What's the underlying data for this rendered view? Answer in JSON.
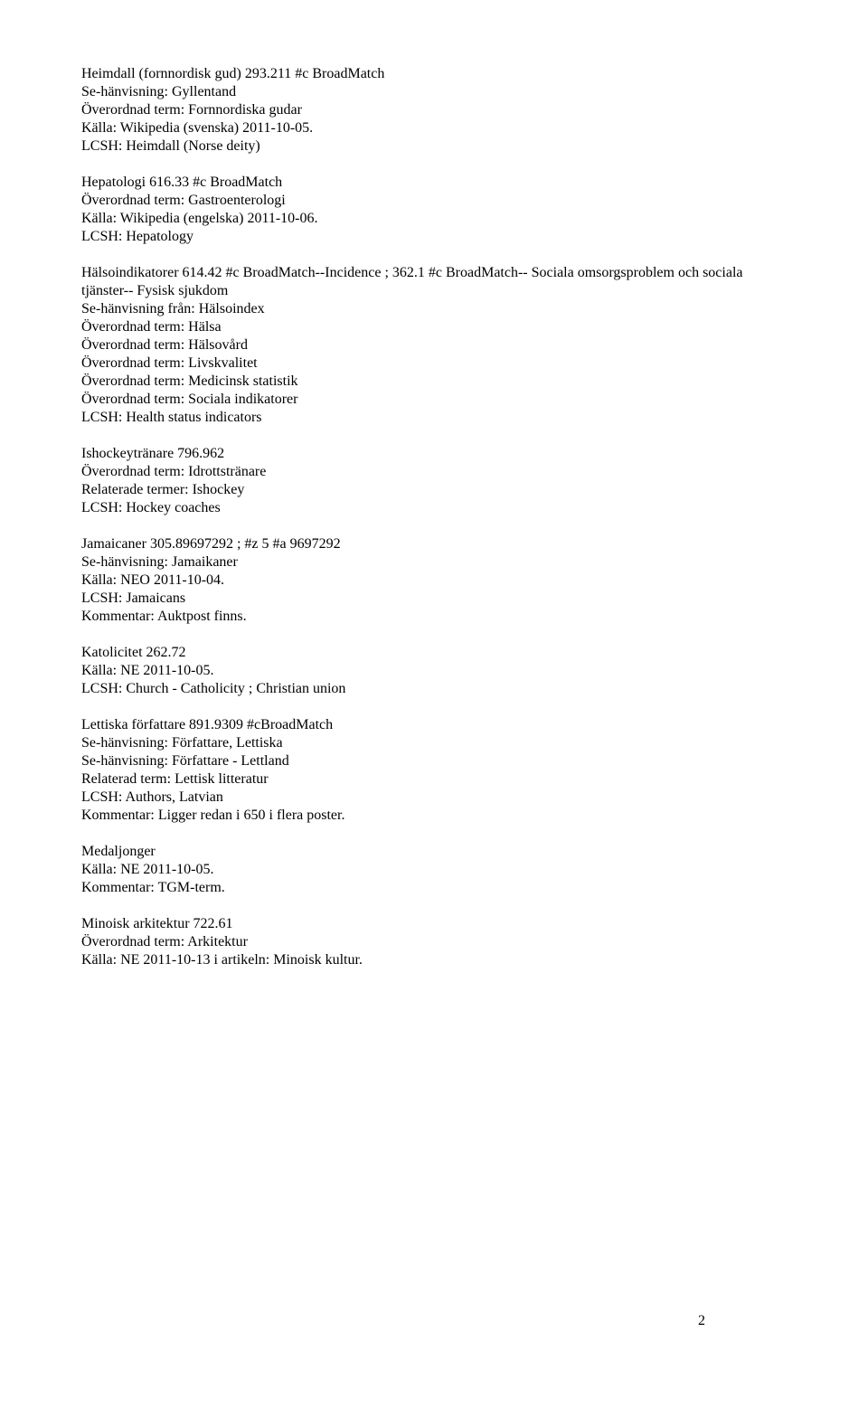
{
  "entries": [
    {
      "lines": [
        "Heimdall (fornnordisk gud) 293.211 #c BroadMatch",
        "Se-hänvisning: Gyllentand",
        "Överordnad term: Fornnordiska gudar",
        "Källa: Wikipedia (svenska) 2011-10-05.",
        "LCSH: Heimdall (Norse deity)"
      ]
    },
    {
      "lines": [
        "Hepatologi 616.33 #c BroadMatch",
        "Överordnad term: Gastroenterologi",
        "Källa: Wikipedia (engelska) 2011-10-06.",
        "LCSH: Hepatology"
      ]
    },
    {
      "lines": [
        "Hälsoindikatorer 614.42 #c BroadMatch--Incidence ; 362.1 #c BroadMatch-- Sociala omsorgsproblem och sociala tjänster-- Fysisk sjukdom",
        "Se-hänvisning från: Hälsoindex",
        "Överordnad term: Hälsa",
        "Överordnad term: Hälsovård",
        "Överordnad term: Livskvalitet",
        "Överordnad term: Medicinsk statistik",
        "Överordnad term: Sociala indikatorer",
        "LCSH: Health status indicators"
      ]
    },
    {
      "lines": [
        "Ishockeytränare 796.962",
        "Överordnad term: Idrottstränare",
        "Relaterade termer: Ishockey",
        "LCSH: Hockey coaches"
      ]
    },
    {
      "lines": [
        "Jamaicaner 305.89697292 ; #z 5 #a 9697292",
        "Se-hänvisning: Jamaikaner",
        "Källa: NEO 2011-10-04.",
        "LCSH: Jamaicans",
        "Kommentar: Auktpost finns."
      ]
    },
    {
      "lines": [
        "Katolicitet 262.72",
        "Källa: NE 2011-10-05.",
        "LCSH: Church - Catholicity ; Christian union"
      ]
    },
    {
      "lines": [
        "Lettiska författare 891.9309 #cBroadMatch",
        "Se-hänvisning: Författare, Lettiska",
        "Se-hänvisning: Författare - Lettland",
        "Relaterad term: Lettisk litteratur",
        "LCSH: Authors, Latvian",
        "Kommentar: Ligger redan i 650 i flera poster."
      ]
    },
    {
      "lines": [
        "Medaljonger",
        "Källa: NE 2011-10-05.",
        "Kommentar: TGM-term."
      ]
    },
    {
      "lines": [
        "Minoisk arkitektur 722.61",
        "Överordnad term: Arkitektur",
        "Källa: NE 2011-10-13 i artikeln: Minoisk kultur."
      ]
    }
  ],
  "pageNumber": "2"
}
